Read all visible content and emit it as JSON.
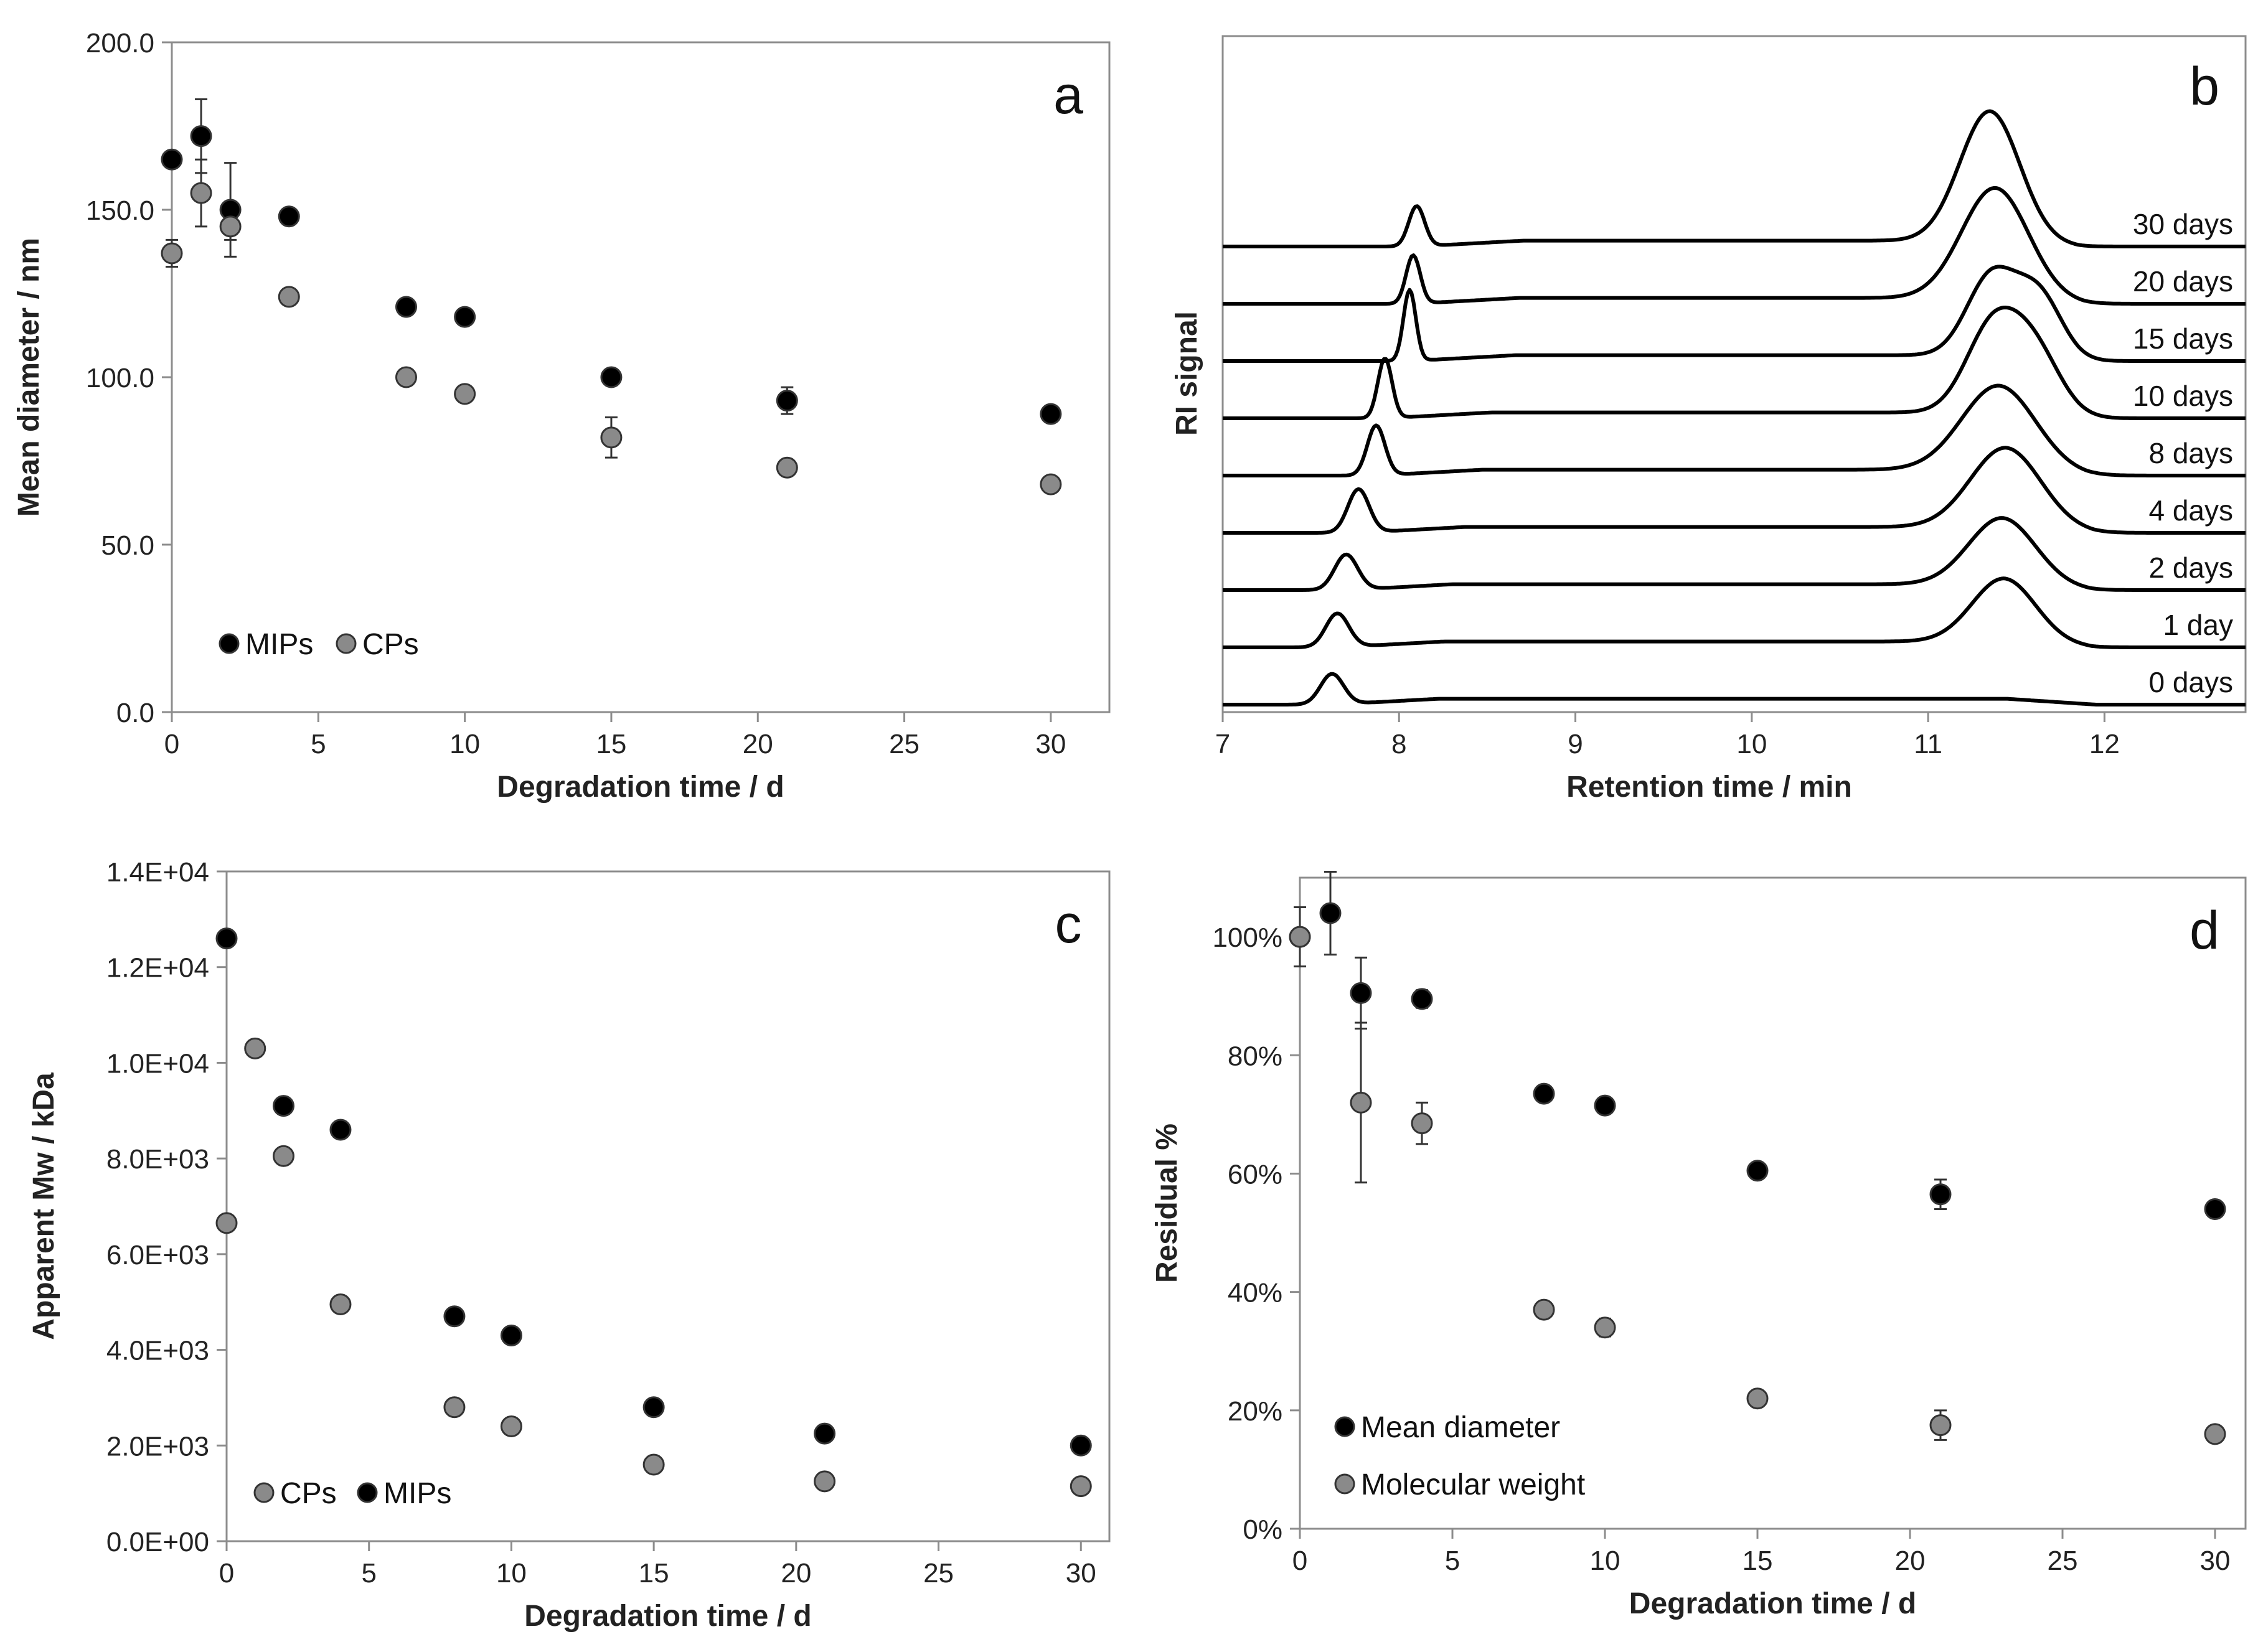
{
  "colors": {
    "mips": "#000000",
    "cps": "#8a8a8a",
    "axis": "#8c8c8c",
    "text": "#222222"
  },
  "chart_data": [
    {
      "panel": "a",
      "type": "scatter",
      "xlabel": "Degradation time / d",
      "ylabel": "Mean diameter / nm",
      "xlim": [
        0,
        32
      ],
      "ylim": [
        0,
        200
      ],
      "xticks": [
        0,
        5,
        10,
        15,
        20,
        25,
        30
      ],
      "xtick_labels": [
        "0",
        "5",
        "10",
        "15",
        "20",
        "25",
        "30"
      ],
      "yticks": [
        0,
        50,
        100,
        150,
        200
      ],
      "ytick_labels": [
        "0.0",
        "50.0",
        "100.0",
        "150.0",
        "200.0"
      ],
      "legend": [
        "MIPs",
        "CPs"
      ],
      "legend_position": "bottom-left",
      "series": [
        {
          "name": "MIPs",
          "color_key": "mips",
          "x": [
            0,
            1,
            2,
            4,
            8,
            10,
            15,
            21,
            30
          ],
          "y": [
            165,
            172,
            150,
            148,
            121,
            118,
            100,
            93,
            89
          ],
          "err": [
            0,
            11,
            14,
            2,
            0,
            0,
            0,
            4,
            0
          ]
        },
        {
          "name": "CPs",
          "color_key": "cps",
          "x": [
            0,
            1,
            2,
            4,
            8,
            10,
            15,
            21,
            30
          ],
          "y": [
            137,
            155,
            145,
            124,
            100,
            95,
            82,
            73,
            68
          ],
          "err": [
            4,
            10,
            4,
            0,
            0,
            0,
            6,
            0,
            0
          ]
        }
      ]
    },
    {
      "panel": "b",
      "type": "line",
      "xlabel": "Retention time / min",
      "ylabel": "RI signal",
      "xlim": [
        7,
        12.8
      ],
      "xticks": [
        7,
        8,
        9,
        10,
        11,
        12
      ],
      "xtick_labels": [
        "7",
        "8",
        "9",
        "10",
        "11",
        "12"
      ],
      "traces": [
        {
          "label": "0 days",
          "offset": 0,
          "peak1_x": 7.62,
          "peak1_h": 0.95,
          "peak1_w": 0.065,
          "peak2_x": 11.45,
          "peak2_h": 0.0,
          "peak2_w": 0.18
        },
        {
          "label": "1 day",
          "offset": 1,
          "peak1_x": 7.65,
          "peak1_h": 1.05,
          "peak1_w": 0.065,
          "peak2_x": 11.43,
          "peak2_h": 1.95,
          "peak2_w": 0.18
        },
        {
          "label": "2 days",
          "offset": 2,
          "peak1_x": 7.7,
          "peak1_h": 1.1,
          "peak1_w": 0.065,
          "peak2_x": 11.42,
          "peak2_h": 2.05,
          "peak2_w": 0.19
        },
        {
          "label": "4 days",
          "offset": 3,
          "peak1_x": 7.77,
          "peak1_h": 1.35,
          "peak1_w": 0.06,
          "peak2_x": 11.44,
          "peak2_h": 2.45,
          "peak2_w": 0.2
        },
        {
          "label": "8 days",
          "offset": 4,
          "peak1_x": 7.87,
          "peak1_h": 1.55,
          "peak1_w": 0.05,
          "peak2_x": 11.4,
          "peak2_h": 2.6,
          "peak2_w": 0.21
        },
        {
          "label": "10 days",
          "offset": 5,
          "peak1_x": 7.92,
          "peak1_h": 1.85,
          "peak1_w": 0.04,
          "peak2_x": 11.36,
          "peak2_h": 2.5,
          "peak2_w": 0.15,
          "peak3_x": 11.6,
          "peak3_h": 1.95,
          "peak3_w": 0.15
        },
        {
          "label": "15 days",
          "offset": 6,
          "peak1_x": 8.06,
          "peak1_h": 2.2,
          "peak1_w": 0.035,
          "peak2_x": 11.36,
          "peak2_h": 2.45,
          "peak2_w": 0.14,
          "peak3_x": 11.63,
          "peak3_h": 1.9,
          "peak3_w": 0.13
        },
        {
          "label": "20 days",
          "offset": 7,
          "peak1_x": 8.08,
          "peak1_h": 1.5,
          "peak1_w": 0.04,
          "peak2_x": 11.38,
          "peak2_h": 3.4,
          "peak2_w": 0.19
        },
        {
          "label": "30 days",
          "offset": 8,
          "peak1_x": 8.1,
          "peak1_h": 1.25,
          "peak1_w": 0.045,
          "peak2_x": 11.35,
          "peak2_h": 4.0,
          "peak2_w": 0.17
        }
      ]
    },
    {
      "panel": "c",
      "type": "scatter",
      "xlabel": "Degradation time / d",
      "ylabel": "Apparent Mw / kDa",
      "xlim": [
        0,
        31
      ],
      "ylim": [
        0,
        14000
      ],
      "xticks": [
        0,
        5,
        10,
        15,
        20,
        25,
        30
      ],
      "xtick_labels": [
        "0",
        "5",
        "10",
        "15",
        "20",
        "25",
        "30"
      ],
      "yticks": [
        0,
        2000,
        4000,
        6000,
        8000,
        10000,
        12000,
        14000
      ],
      "ytick_labels": [
        "0.0E+00",
        "2.0E+03",
        "4.0E+03",
        "6.0E+03",
        "8.0E+03",
        "1.0E+04",
        "1.2E+04",
        "1.4E+04"
      ],
      "legend": [
        "CPs",
        "MIPs"
      ],
      "legend_position": "bottom-left",
      "series": [
        {
          "name": "MIPs",
          "color_key": "mips",
          "x": [
            0,
            2,
            4,
            8,
            10,
            15,
            21,
            30
          ],
          "y": [
            12600,
            9100,
            8600,
            4700,
            4300,
            2800,
            2250,
            2000
          ],
          "err": [
            0,
            0,
            0,
            0,
            0,
            0,
            0,
            0
          ]
        },
        {
          "name": "CPs",
          "color_key": "cps",
          "x": [
            0,
            1,
            2,
            4,
            8,
            10,
            15,
            21,
            30
          ],
          "y": [
            6650,
            10300,
            8050,
            4950,
            2800,
            2400,
            1600,
            1250,
            1150
          ],
          "err": [
            0,
            0,
            0,
            0,
            0,
            0,
            0,
            0,
            0
          ]
        }
      ]
    },
    {
      "panel": "d",
      "type": "scatter",
      "xlabel": "Degradation time / d",
      "ylabel": "Residual %",
      "xlim": [
        0,
        31
      ],
      "ylim": [
        0,
        110
      ],
      "xticks": [
        0,
        5,
        10,
        15,
        20,
        25,
        30
      ],
      "xtick_labels": [
        "0",
        "5",
        "10",
        "15",
        "20",
        "25",
        "30"
      ],
      "yticks": [
        0,
        20,
        40,
        60,
        80,
        100
      ],
      "ytick_labels": [
        "0%",
        "20%",
        "40%",
        "60%",
        "80%",
        "100%"
      ],
      "legend": [
        "Mean diameter",
        "Molecular weight"
      ],
      "legend_position": "bottom-left",
      "series": [
        {
          "name": "Mean diameter",
          "color_key": "mips",
          "x": [
            0,
            1,
            2,
            4,
            8,
            10,
            15,
            21,
            30
          ],
          "y": [
            100,
            104,
            90.5,
            89.5,
            73.5,
            71.5,
            60.5,
            56.5,
            54
          ],
          "err": [
            0,
            7,
            6,
            1.5,
            0,
            0,
            0,
            2.5,
            0
          ]
        },
        {
          "name": "Molecular weight",
          "color_key": "cps",
          "x": [
            0,
            2,
            4,
            8,
            10,
            15,
            21,
            30
          ],
          "y": [
            100,
            72,
            68.5,
            37,
            34,
            22,
            17.5,
            16
          ],
          "err": [
            5,
            13.5,
            3.5,
            0,
            1.5,
            0,
            2.5,
            0
          ]
        }
      ]
    }
  ]
}
